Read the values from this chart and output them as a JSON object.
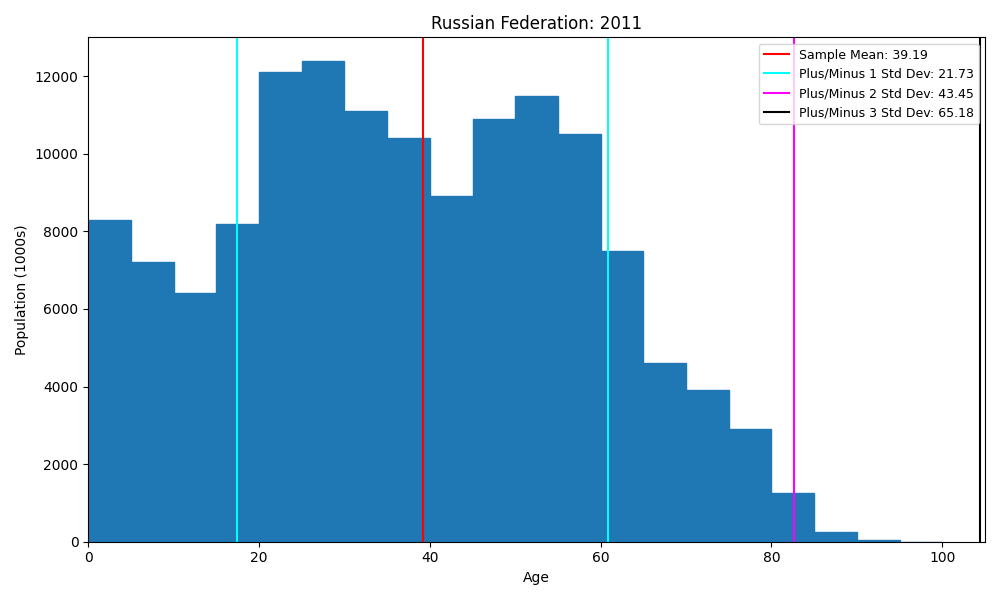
{
  "title": "Russian Federation: 2011",
  "xlabel": "Age",
  "ylabel": "Population (1000s)",
  "bar_color": "#1f77b4",
  "bar_edgecolor": "#1f77b4",
  "bin_width": 5,
  "bin_starts": [
    0,
    5,
    10,
    15,
    20,
    25,
    30,
    35,
    40,
    45,
    50,
    55,
    60,
    65,
    70,
    75,
    80,
    85,
    90,
    95
  ],
  "bar_heights": [
    8300,
    7200,
    6400,
    8200,
    12100,
    12400,
    11100,
    10400,
    8900,
    10900,
    11500,
    10500,
    7500,
    4600,
    3900,
    2900,
    1250,
    250,
    50,
    0
  ],
  "mean": 39.19,
  "std1": 21.73,
  "std2": 43.45,
  "std3": 65.18,
  "mean_color": "red",
  "std1_color": "cyan",
  "std2_color": "magenta",
  "std3_color": "black",
  "mean_label": "Sample Mean: 39.19",
  "std1_label": "Plus/Minus 1 Std Dev: 21.73",
  "std2_label": "Plus/Minus 2 Std Dev: 43.45",
  "std3_label": "Plus/Minus 3 Std Dev: 65.18",
  "xlim": [
    0,
    105
  ],
  "ylim": [
    0,
    13000
  ],
  "figsize": [
    10,
    6
  ],
  "dpi": 100
}
